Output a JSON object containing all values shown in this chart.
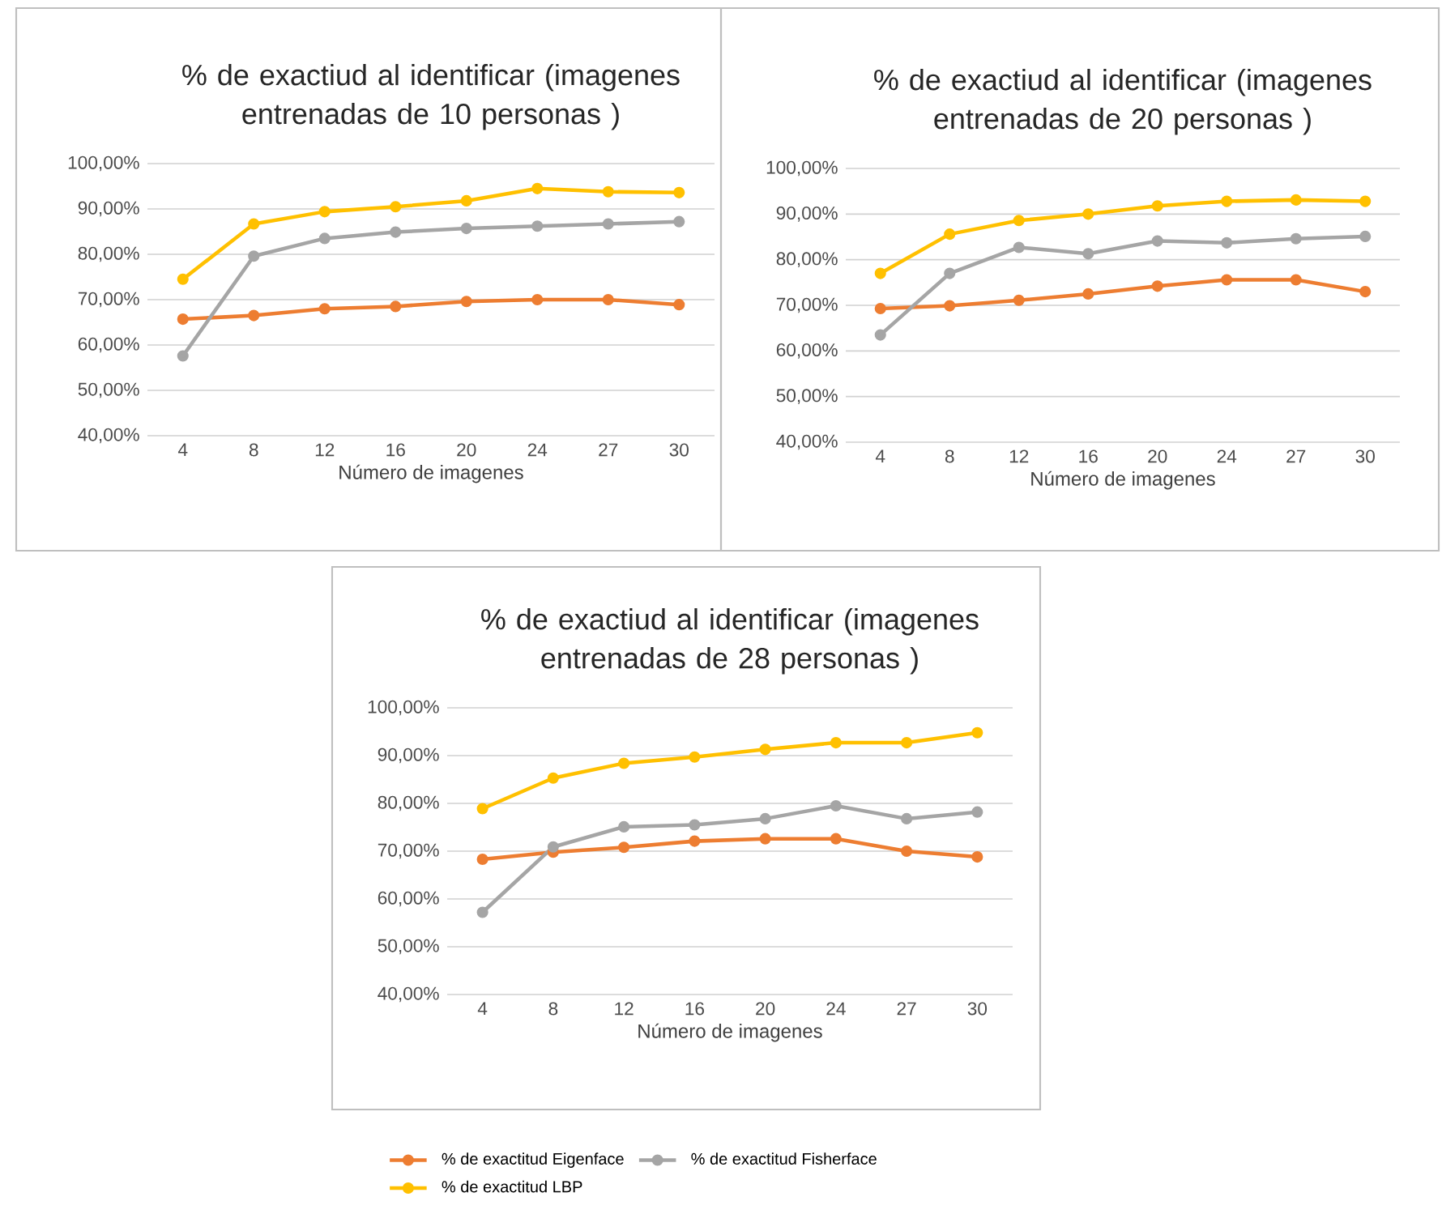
{
  "chart_data": [
    {
      "type": "line",
      "title": "% de exactiud al identificar (imagenes entrenadas de 10 personas )",
      "xlabel": "Número de imagenes",
      "categories": [
        "4",
        "8",
        "12",
        "16",
        "20",
        "24",
        "27",
        "30"
      ],
      "ylim": [
        40,
        100
      ],
      "yticks": [
        {
          "value": 40,
          "label": "40,00%"
        },
        {
          "value": 50,
          "label": "50,00%"
        },
        {
          "value": 60,
          "label": "60,00%"
        },
        {
          "value": 70,
          "label": "70,00%"
        },
        {
          "value": 80,
          "label": "80,00%"
        },
        {
          "value": 90,
          "label": "90,00%"
        },
        {
          "value": 100,
          "label": "100,00%"
        }
      ],
      "grid": "y",
      "marker": "circle",
      "legend": false,
      "series": [
        {
          "color": "#ed7d31",
          "values": [
            65.7,
            66.5,
            68,
            68.5,
            69.6,
            70,
            70,
            68.9
          ]
        },
        {
          "color": "#a5a5a5",
          "values": [
            57.6,
            79.6,
            83.5,
            84.9,
            85.7,
            86.2,
            86.7,
            87.2
          ]
        },
        {
          "color": "#ffc000",
          "values": [
            74.5,
            86.7,
            89.4,
            90.5,
            91.8,
            94.5,
            93.8,
            93.6
          ]
        }
      ]
    },
    {
      "type": "line",
      "title": "% de exactiud al identificar (imagenes entrenadas de 20 personas )",
      "xlabel": "Número de imagenes",
      "categories": [
        "4",
        "8",
        "12",
        "16",
        "20",
        "24",
        "27",
        "30"
      ],
      "ylim": [
        40,
        100
      ],
      "yticks": [
        {
          "value": 40,
          "label": "40,00%"
        },
        {
          "value": 50,
          "label": "50,00%"
        },
        {
          "value": 60,
          "label": "60,00%"
        },
        {
          "value": 70,
          "label": "70,00%"
        },
        {
          "value": 80,
          "label": "80,00%"
        },
        {
          "value": 90,
          "label": "90,00%"
        },
        {
          "value": 100,
          "label": "100,00%"
        }
      ],
      "grid": "y",
      "marker": "circle",
      "legend": false,
      "series": [
        {
          "color": "#ed7d31",
          "values": [
            69.3,
            69.9,
            71.1,
            72.5,
            74.2,
            75.6,
            75.6,
            73
          ]
        },
        {
          "color": "#a5a5a5",
          "values": [
            63.5,
            77,
            82.7,
            81.3,
            84.1,
            83.7,
            84.6,
            85.1
          ]
        },
        {
          "color": "#ffc000",
          "values": [
            77,
            85.6,
            88.6,
            90,
            91.8,
            92.8,
            93.1,
            92.8
          ]
        }
      ]
    },
    {
      "type": "line",
      "title": "% de exactiud al identificar (imagenes entrenadas de 28 personas )",
      "xlabel": "Número de imagenes",
      "categories": [
        "4",
        "8",
        "12",
        "16",
        "20",
        "24",
        "27",
        "30"
      ],
      "ylim": [
        40,
        100
      ],
      "yticks": [
        {
          "value": 40,
          "label": "40,00%"
        },
        {
          "value": 50,
          "label": "50,00%"
        },
        {
          "value": 60,
          "label": "60,00%"
        },
        {
          "value": 70,
          "label": "70,00%"
        },
        {
          "value": 80,
          "label": "80,00%"
        },
        {
          "value": 90,
          "label": "90,00%"
        },
        {
          "value": 100,
          "label": "100,00%"
        }
      ],
      "grid": "y",
      "marker": "circle",
      "legend": "bottom",
      "series": [
        {
          "name": "% de exactitud Eigenface",
          "color": "#ed7d31",
          "values": [
            68.3,
            69.8,
            70.8,
            72.1,
            72.6,
            72.6,
            70,
            68.8
          ]
        },
        {
          "name": "% de exactitud Fisherface",
          "color": "#a5a5a5",
          "values": [
            57.2,
            70.9,
            75.1,
            75.5,
            76.8,
            79.5,
            76.8,
            78.2
          ]
        },
        {
          "name": "% de exactitud LBP",
          "color": "#ffc000",
          "values": [
            78.9,
            85.3,
            88.4,
            89.7,
            91.3,
            92.7,
            92.7,
            94.8
          ]
        }
      ]
    }
  ]
}
